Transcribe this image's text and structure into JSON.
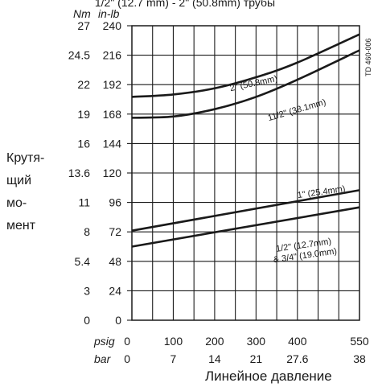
{
  "chart_data": {
    "type": "line",
    "title": "1/2\" (12.7 mm) - 2\" (50.8mm) трубы",
    "figure_id": "TD 460-006",
    "ylabel_lines": [
      "Крутя-",
      "щий",
      "мо-",
      "мент"
    ],
    "xlabel": "Линейное давление",
    "y_axis": {
      "range_inlb": [
        0,
        240
      ],
      "inlb_unit": "in-lb",
      "nm_unit": "Nm",
      "ticks_inlb": [
        0,
        24,
        48,
        72,
        96,
        120,
        144,
        168,
        192,
        216,
        240
      ],
      "ticks_nm": [
        "0",
        "3",
        "5.4",
        "8",
        "11",
        "13.6",
        "16",
        "19",
        "22",
        "24.5",
        "27"
      ]
    },
    "x_axis": {
      "range_psig": [
        0,
        550
      ],
      "psig_unit": "psig",
      "bar_unit": "bar",
      "ticks_psig": [
        0,
        100,
        200,
        300,
        400,
        550
      ],
      "ticks_bar": [
        "0",
        "7",
        "14",
        "21",
        "27.6",
        "38"
      ]
    },
    "grid": true,
    "series": [
      {
        "name": "2\" (50.8mm)",
        "x": [
          0,
          100,
          200,
          300,
          400,
          550
        ],
        "y": [
          182,
          184,
          189,
          198,
          210,
          233
        ]
      },
      {
        "name": "11/2\" (38.1mm)",
        "x": [
          0,
          100,
          200,
          300,
          400,
          550
        ],
        "y": [
          165,
          166,
          172,
          182,
          196,
          220
        ]
      },
      {
        "name": "1\" (25.4mm)",
        "x": [
          0,
          550
        ],
        "y": [
          73,
          106
        ]
      },
      {
        "name": "1/2\" (12.7mm)\n& 3/4\" (19.0mm)",
        "x": [
          0,
          550
        ],
        "y": [
          60,
          92
        ]
      }
    ],
    "title_visible": "1/2\"  (12.7 mm) - 2\" (50.8mm) трубы"
  }
}
